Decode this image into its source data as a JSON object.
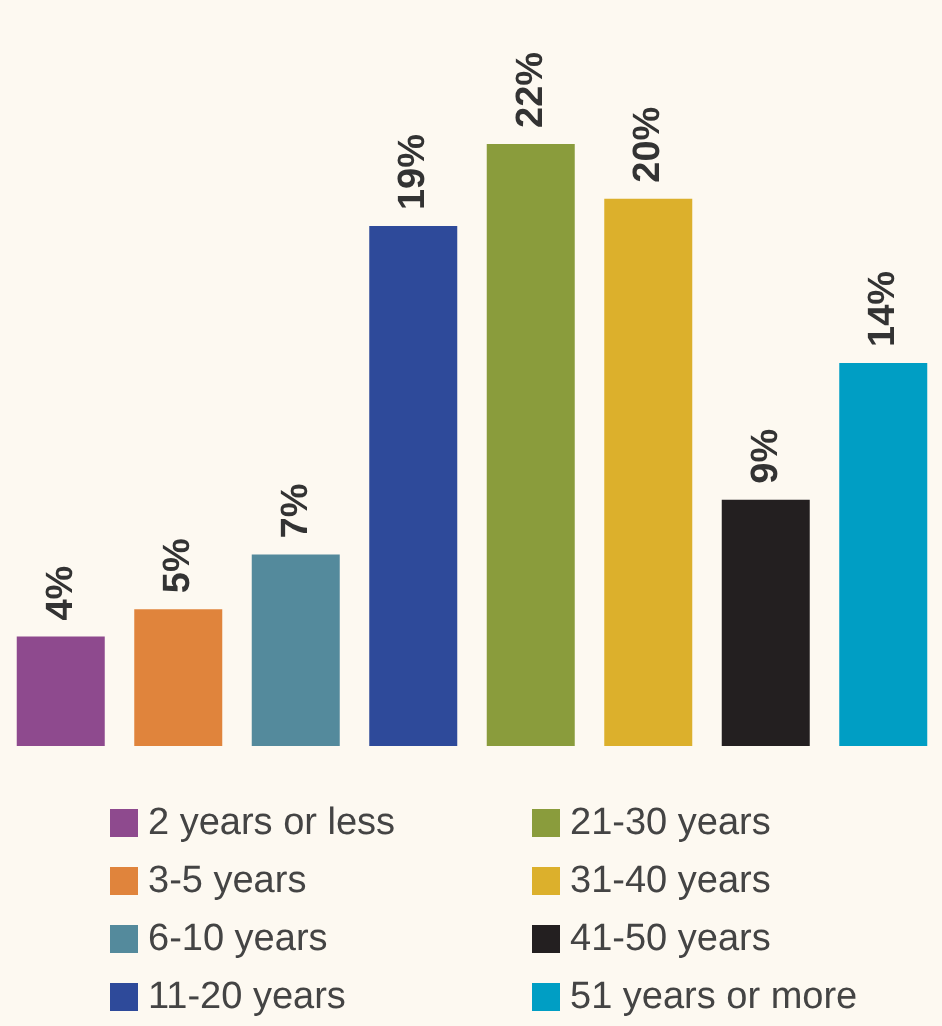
{
  "chart_data": {
    "type": "bar",
    "categories": [
      null,
      null,
      null,
      null,
      null,
      null,
      null,
      null
    ],
    "series": [
      {
        "name": "2 years or less",
        "color": "#8e4a8e",
        "values": [
          4,
          null,
          null,
          null,
          null,
          null,
          null,
          null
        ],
        "value_labels": [
          "4%",
          null,
          null,
          null,
          null,
          null,
          null,
          null
        ]
      },
      {
        "name": "3-5 years",
        "color": "#e0843c",
        "values": [
          null,
          5,
          null,
          null,
          null,
          null,
          null,
          null
        ],
        "value_labels": [
          null,
          "5%",
          null,
          null,
          null,
          null,
          null,
          null
        ]
      },
      {
        "name": "6-10 years",
        "color": "#548a9c",
        "values": [
          null,
          null,
          7,
          null,
          null,
          null,
          null,
          null
        ],
        "value_labels": [
          null,
          null,
          "7%",
          null,
          null,
          null,
          null,
          null
        ]
      },
      {
        "name": "11-20 years",
        "color": "#2e4a9a",
        "values": [
          null,
          null,
          null,
          19,
          null,
          null,
          null,
          null
        ],
        "value_labels": [
          null,
          null,
          null,
          "19%",
          null,
          null,
          null,
          null
        ]
      },
      {
        "name": "21-30 years",
        "color": "#8a9c3c",
        "values": [
          null,
          null,
          null,
          null,
          22,
          null,
          null,
          null
        ],
        "value_labels": [
          null,
          null,
          null,
          null,
          "22%",
          null,
          null,
          null
        ]
      },
      {
        "name": "31-40 years",
        "color": "#dcb02c",
        "values": [
          null,
          null,
          null,
          null,
          null,
          20,
          null,
          null
        ],
        "value_labels": [
          null,
          null,
          null,
          null,
          null,
          "20%",
          null,
          null
        ]
      },
      {
        "name": "41-50 years",
        "color": "#231f20",
        "values": [
          null,
          null,
          null,
          null,
          null,
          null,
          9,
          null
        ],
        "value_labels": [
          null,
          null,
          null,
          null,
          null,
          null,
          "9%",
          null
        ]
      },
      {
        "name": "51 years or more",
        "color": "#009ec4",
        "values": [
          null,
          null,
          null,
          null,
          null,
          null,
          null,
          14
        ],
        "value_labels": [
          null,
          null,
          null,
          null,
          null,
          null,
          null,
          "14%"
        ]
      }
    ],
    "stacked": true,
    "tick_labels": false,
    "legend": "bottom"
  }
}
